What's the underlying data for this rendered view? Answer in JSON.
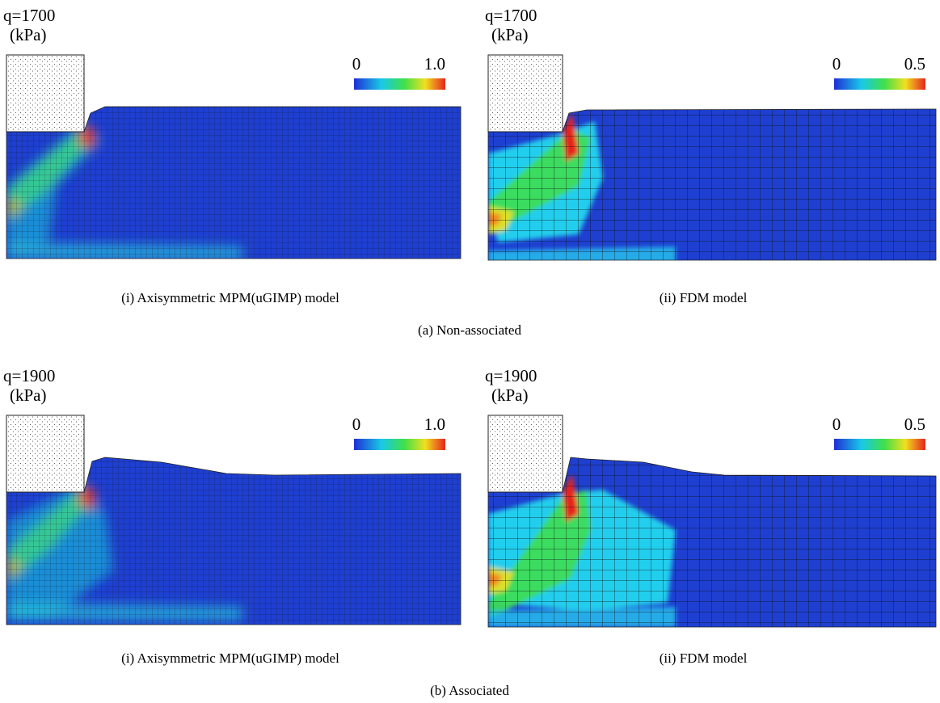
{
  "rows": [
    {
      "caption": "(a) Non-associated",
      "panels": [
        {
          "load": "q=1700",
          "unit": "(kPa)",
          "colorbar_min": "0",
          "colorbar_max": "1.0",
          "caption": "(i) Axisymmetric MPM(uGIMP) model"
        },
        {
          "load": "q=1700",
          "unit": "(kPa)",
          "colorbar_min": "0",
          "colorbar_max": "0.5",
          "caption": "(ii) FDM model"
        }
      ]
    },
    {
      "caption": "(b) Associated",
      "panels": [
        {
          "load": "q=1900",
          "unit": "(kPa)",
          "colorbar_min": "0",
          "colorbar_max": "1.0",
          "caption": "(i) Axisymmetric MPM(uGIMP) model"
        },
        {
          "load": "q=1900",
          "unit": "(kPa)",
          "colorbar_min": "0",
          "colorbar_max": "0.5",
          "caption": "(ii) FDM model"
        }
      ]
    }
  ]
}
